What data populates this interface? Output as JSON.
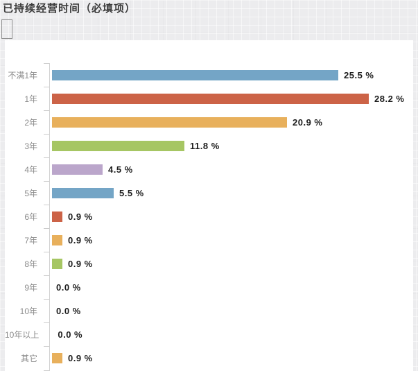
{
  "header": {
    "title": "已持续经营时间（必填项）"
  },
  "chart_data": {
    "type": "bar",
    "orientation": "horizontal",
    "title": "已持续经营时间（必填项）",
    "categories": [
      "不满1年",
      "1年",
      "2年",
      "3年",
      "4年",
      "5年",
      "6年",
      "7年",
      "8年",
      "9年",
      "10年",
      "10年以上",
      "其它"
    ],
    "values": [
      25.5,
      28.2,
      20.9,
      11.8,
      4.5,
      5.5,
      0.9,
      0.9,
      0.9,
      0.0,
      0.0,
      0.0,
      0.9
    ],
    "value_labels": [
      "25.5 %",
      "28.2 %",
      "20.9 %",
      "11.8 %",
      "4.5 %",
      "5.5 %",
      "0.9 %",
      "0.9 %",
      "0.9 %",
      "0.0 %",
      "0.0 %",
      "0.0 %",
      "0.9 %"
    ],
    "bar_colors": [
      "#74a5c6",
      "#cc6347",
      "#e8b05c",
      "#a6c663",
      "#bba6cb",
      "#74a5c6",
      "#cc6347",
      "#e8b05c",
      "#a6c663",
      "#bba6cb",
      "#74a5c6",
      "#cc6347",
      "#e8b05c"
    ],
    "unit": "%",
    "xlim": [
      0,
      30
    ],
    "grid": false,
    "legend": "none",
    "axis_color": "#d2d2d2",
    "category_label_color": "#8b8b8b",
    "value_label_color": "#1c1c1c",
    "panel_background": "#ffffff",
    "page_background": "#ececee"
  }
}
